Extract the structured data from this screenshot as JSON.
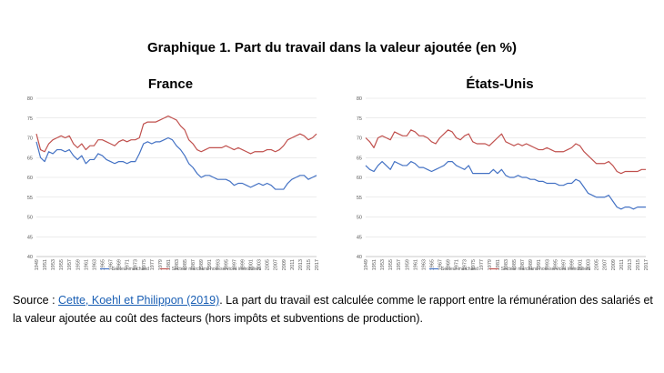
{
  "title": "Graphique 1. Part du travail dans la valeur ajoutée (en %)",
  "colors": {
    "series1": "#4472c4",
    "series2": "#c0504d",
    "grid": "#d9d9d9",
    "axis": "#bfbfbf"
  },
  "source": {
    "prefix": "Source : ",
    "link_text": "Cette, Koehl et Philippon (2019)",
    "suffix": ". La part du travail est calculée comme le rapport entre la rémunération des salariés et la valeur ajoutée au coût des facteurs (hors impôts et subventions de production)."
  },
  "chart_data": [
    {
      "type": "line",
      "title": "France",
      "grid": true,
      "legend_position": "bottom",
      "ylim": [
        40,
        80
      ],
      "y_ticks": [
        40,
        45,
        50,
        55,
        60,
        65,
        70,
        75,
        80
      ],
      "x": [
        1949,
        1950,
        1951,
        1952,
        1953,
        1954,
        1955,
        1956,
        1957,
        1958,
        1959,
        1960,
        1961,
        1962,
        1963,
        1964,
        1965,
        1966,
        1967,
        1968,
        1969,
        1970,
        1971,
        1972,
        1973,
        1974,
        1975,
        1976,
        1977,
        1978,
        1979,
        1980,
        1981,
        1982,
        1983,
        1984,
        1985,
        1986,
        1987,
        1988,
        1989,
        1990,
        1991,
        1992,
        1993,
        1994,
        1995,
        1996,
        1997,
        1998,
        1999,
        2000,
        2001,
        2002,
        2003,
        2004,
        2005,
        2006,
        2007,
        2008,
        2009,
        2010,
        2011,
        2012,
        2013,
        2014,
        2015,
        2016,
        2017
      ],
      "x_tick_labels": [
        "1949",
        "1951",
        "1953",
        "1955",
        "1957",
        "1959",
        "1961",
        "1963",
        "1965",
        "1967",
        "1969",
        "1971",
        "1973",
        "1975",
        "1977",
        "1979",
        "1981",
        "1983",
        "1985",
        "1987",
        "1989",
        "1991",
        "1993",
        "1995",
        "1997",
        "1999",
        "2001",
        "2003",
        "2005",
        "2007",
        "2009",
        "2011",
        "2013",
        "2015",
        "2017"
      ],
      "series": [
        {
          "name": "Secteur marchand",
          "values": [
            69,
            65,
            64,
            66.5,
            66,
            67,
            67,
            66.5,
            67,
            65.5,
            64.5,
            65.5,
            63.5,
            64.5,
            64.5,
            66,
            65.5,
            64.5,
            64,
            63.5,
            64,
            64,
            63.5,
            64,
            64,
            66,
            68.5,
            69,
            68.5,
            69,
            69,
            69.5,
            70,
            69.5,
            68,
            67,
            65.5,
            63.5,
            62.5,
            61,
            60,
            60.5,
            60.5,
            60,
            59.5,
            59.5,
            59.5,
            59,
            58,
            58.5,
            58.5,
            58,
            57.5,
            58,
            58.5,
            58,
            58.5,
            58,
            57,
            57,
            57,
            58.5,
            59.5,
            60,
            60.5,
            60.5,
            59.5,
            60,
            60.5
          ]
        },
        {
          "name": "Secteur marchand hors services immobiliers",
          "values": [
            71,
            67,
            66.5,
            68.5,
            69.5,
            70,
            70.5,
            70,
            70.5,
            68.5,
            67.5,
            68.5,
            67,
            68,
            68,
            69.5,
            69.5,
            69,
            68.5,
            68,
            69,
            69.5,
            69,
            69.5,
            69.5,
            70,
            73.5,
            74,
            74,
            74,
            74.5,
            75,
            75.5,
            75,
            74.5,
            73,
            72,
            69.5,
            68.5,
            67,
            66.5,
            67,
            67.5,
            67.5,
            67.5,
            67.5,
            68,
            67.5,
            67,
            67.5,
            67,
            66.5,
            66,
            66.5,
            66.5,
            66.5,
            67,
            67,
            66.5,
            67,
            68,
            69.5,
            70,
            70.5,
            71,
            70.5,
            69.5,
            70,
            71
          ]
        }
      ]
    },
    {
      "type": "line",
      "title": "États-Unis",
      "grid": true,
      "legend_position": "bottom",
      "ylim": [
        40,
        80
      ],
      "y_ticks": [
        40,
        45,
        50,
        55,
        60,
        65,
        70,
        75,
        80
      ],
      "x": [
        1949,
        1950,
        1951,
        1952,
        1953,
        1954,
        1955,
        1956,
        1957,
        1958,
        1959,
        1960,
        1961,
        1962,
        1963,
        1964,
        1965,
        1966,
        1967,
        1968,
        1969,
        1970,
        1971,
        1972,
        1973,
        1974,
        1975,
        1976,
        1977,
        1978,
        1979,
        1980,
        1981,
        1982,
        1983,
        1984,
        1985,
        1986,
        1987,
        1988,
        1989,
        1990,
        1991,
        1992,
        1993,
        1994,
        1995,
        1996,
        1997,
        1998,
        1999,
        2000,
        2001,
        2002,
        2003,
        2004,
        2005,
        2006,
        2007,
        2008,
        2009,
        2010,
        2011,
        2012,
        2013,
        2014,
        2015,
        2016,
        2017
      ],
      "x_tick_labels": [
        "1949",
        "1951",
        "1953",
        "1955",
        "1957",
        "1959",
        "1961",
        "1963",
        "1965",
        "1967",
        "1969",
        "1971",
        "1973",
        "1975",
        "1977",
        "1979",
        "1981",
        "1983",
        "1985",
        "1987",
        "1989",
        "1991",
        "1993",
        "1995",
        "1997",
        "1999",
        "2001",
        "2003",
        "2005",
        "2007",
        "2009",
        "2011",
        "2013",
        "2015",
        "2017"
      ],
      "series": [
        {
          "name": "Secteur marchand",
          "values": [
            63,
            62,
            61.5,
            63,
            64,
            63,
            62,
            64,
            63.5,
            63,
            63,
            64,
            63.5,
            62.5,
            62.5,
            62,
            61.5,
            62,
            62.5,
            63,
            64,
            64,
            63,
            62.5,
            62,
            63,
            61,
            61,
            61,
            61,
            61,
            62,
            61,
            62,
            60.5,
            60,
            60,
            60.5,
            60,
            60,
            59.5,
            59.5,
            59,
            59,
            58.5,
            58.5,
            58.5,
            58,
            58,
            58.5,
            58.5,
            59.5,
            59,
            57.5,
            56,
            55.5,
            55,
            55,
            55,
            55.5,
            54,
            52.5,
            52,
            52.5,
            52.5,
            52,
            52.5,
            52.5,
            52.5
          ]
        },
        {
          "name": "Secteur marchand hors services immobiliers",
          "values": [
            70,
            69,
            67.5,
            70,
            70.5,
            70,
            69.5,
            71.5,
            71,
            70.5,
            70.5,
            72,
            71.5,
            70.5,
            70.5,
            70,
            69,
            68.5,
            70,
            71,
            72,
            71.5,
            70,
            69.5,
            70.5,
            71,
            69,
            68.5,
            68.5,
            68.5,
            68,
            69,
            70,
            71,
            69,
            68.5,
            68,
            68.5,
            68,
            68.5,
            68,
            67.5,
            67,
            67,
            67.5,
            67,
            66.5,
            66.5,
            66.5,
            67,
            67.5,
            68.5,
            68,
            66.5,
            65.5,
            64.5,
            63.5,
            63.5,
            63.5,
            64,
            63,
            61.5,
            61,
            61.5,
            61.5,
            61.5,
            61.5,
            62,
            62
          ]
        }
      ]
    }
  ]
}
